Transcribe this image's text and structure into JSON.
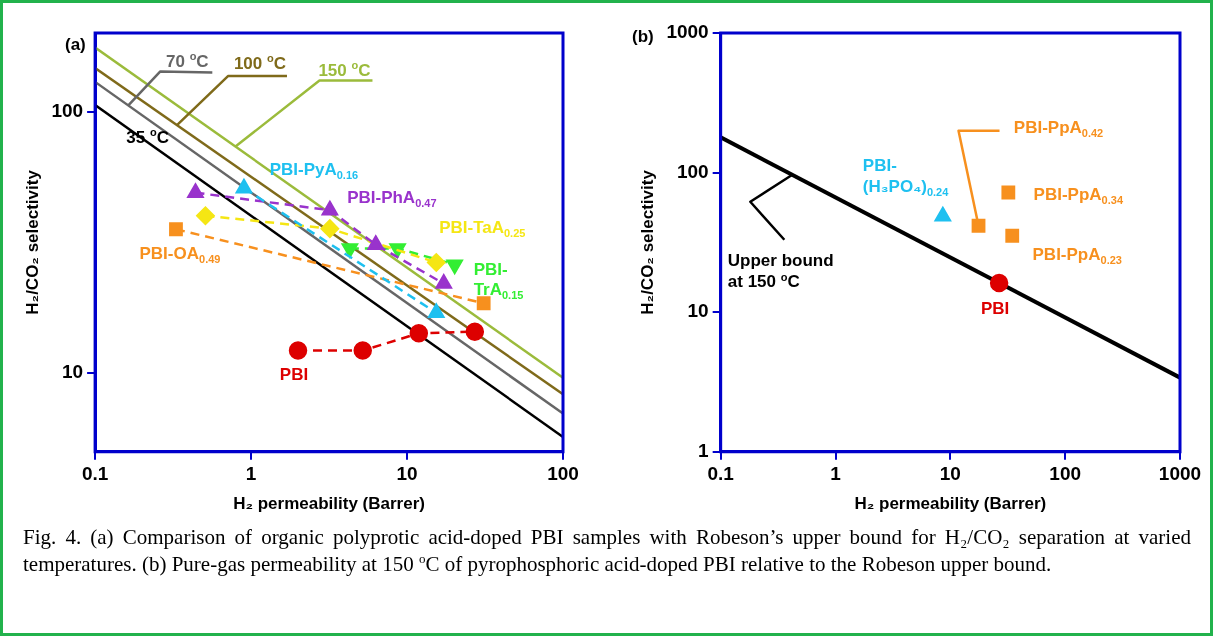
{
  "chart_data": [
    {
      "type": "line",
      "title": "(a)",
      "xlabel": "H₂ permeability (Barrer)",
      "ylabel": "H₂/CO₂ selectivity",
      "log": "xy",
      "xlim": [
        0.1,
        100
      ],
      "ylim": [
        5,
        200
      ],
      "xticks": [
        0.1,
        1,
        10,
        100
      ],
      "yticks": [
        10,
        100
      ],
      "series": [
        {
          "name": "35 $^{o}$C",
          "type": "line",
          "color": "#000000",
          "x": [
            0.1,
            100
          ],
          "values": [
            106,
            5.7
          ],
          "marker": "none",
          "line_style": "solid"
        },
        {
          "name": "70 $^{o}$C",
          "type": "line",
          "color": "#666666",
          "x": [
            0.1,
            100
          ],
          "values": [
            130,
            7.0
          ],
          "marker": "none",
          "line_style": "solid"
        },
        {
          "name": "100 $^{o}$C",
          "type": "line",
          "color": "#7f6a1a",
          "x": [
            0.1,
            100
          ],
          "values": [
            147,
            8.3
          ],
          "marker": "none",
          "line_style": "solid"
        },
        {
          "name": "150 $^{o}$C",
          "type": "line",
          "color": "#9bbb3b",
          "x": [
            0.1,
            100
          ],
          "values": [
            176,
            9.6
          ],
          "marker": "none",
          "line_style": "solid"
        },
        {
          "name": "PBI-PyA$_{0.16}$",
          "color": "#1ec0f0",
          "x": [
            0.9,
            15.4
          ],
          "values": [
            51,
            17
          ],
          "marker": "triangle",
          "line_style": "dashed"
        },
        {
          "name": "PBI-PhA$_{0.47}$",
          "color": "#9933cc",
          "x": [
            0.44,
            3.2,
            6.3,
            17.2
          ],
          "values": [
            49,
            42,
            31,
            22
          ],
          "marker": "triangle",
          "line_style": "dashed"
        },
        {
          "name": "PBI-TaA$_{0.25}$",
          "color": "#f5e614",
          "x": [
            0.51,
            3.2,
            15.4
          ],
          "values": [
            40,
            35.7,
            26.5
          ],
          "marker": "diamond",
          "line_style": "dashed"
        },
        {
          "name": "PBI-TrA$_{0.15}$",
          "color": "#33ee33",
          "x": [
            4.3,
            8.7,
            20.2
          ],
          "values": [
            30,
            30,
            26
          ],
          "marker": "triangle",
          "line_style": "dashed"
        },
        {
          "name": "PBI-OA$_{0.49}$",
          "color": "#f7901e",
          "x": [
            0.33,
            31
          ],
          "values": [
            35.5,
            18.5
          ],
          "marker": "square",
          "line_style": "dashed"
        },
        {
          "name": "PBI",
          "color": "#dd0000",
          "x": [
            2.0,
            5.2,
            11.9,
            27.2
          ],
          "values": [
            12.2,
            12.2,
            14.2,
            14.4
          ],
          "marker": "circle",
          "line_style": "dashed"
        }
      ],
      "annotations": [
        "Fig. 4. (a) Comparison of organic polyprotic acid-doped PBI samples with Robeson’s upper bound for H₂/CO₂ separation at varied temperatures. (b) Pure-gas permeability at 150 $^{o}$C of pyrophosphoric acid-doped PBI relative to the Robeson upper bound."
      ]
    },
    {
      "type": "scatter",
      "title": "(b)",
      "xlabel": "H₂ permeability (Barrer)",
      "ylabel": "H₂/CO₂ selectivity",
      "log": "xy",
      "xlim": [
        0.1,
        1000
      ],
      "ylim": [
        1,
        1000
      ],
      "xticks": [
        0.1,
        1,
        10,
        100,
        1000
      ],
      "yticks": [
        1,
        10,
        100,
        1000
      ],
      "series": [
        {
          "name": "Upper bound at 150 $^{o}$C",
          "type": "line",
          "color": "#000000",
          "x": [
            0.1,
            1000
          ],
          "values": [
            179,
            3.4
          ],
          "marker": "none",
          "line_style": "solid"
        },
        {
          "name": "PBI-(H₃PO₄)$_{0.24}$",
          "color": "#1ec0f0",
          "x": [
            8.6
          ],
          "values": [
            48.7
          ],
          "marker": "triangle"
        },
        {
          "name": "PBI-PpA$_{0.42}$",
          "color": "#f7901e",
          "x": [
            17.6
          ],
          "values": [
            41.6
          ],
          "marker": "square"
        },
        {
          "name": "PBI-PpA$_{0.34}$",
          "color": "#f7901e",
          "x": [
            32
          ],
          "values": [
            72
          ],
          "marker": "square"
        },
        {
          "name": "PBI-PpA$_{0.23}$",
          "color": "#f7901e",
          "x": [
            34.6
          ],
          "values": [
            35.3
          ],
          "marker": "square"
        },
        {
          "name": "PBI",
          "color": "#dd0000",
          "x": [
            26.6
          ],
          "values": [
            16.2
          ],
          "marker": "circle"
        }
      ]
    }
  ]
}
